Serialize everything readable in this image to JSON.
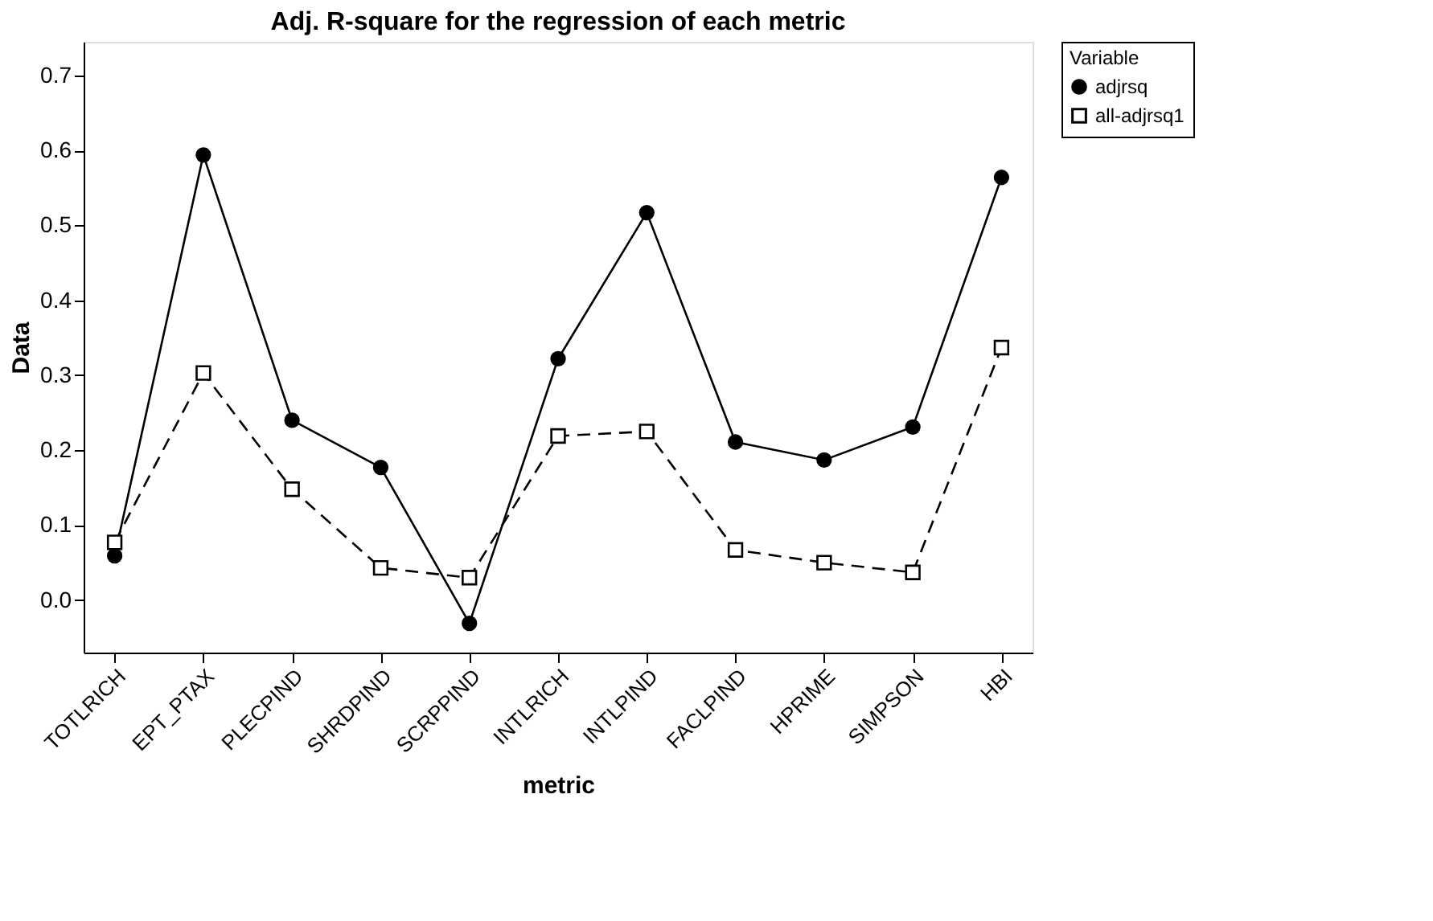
{
  "chart_data": {
    "type": "line",
    "title": "Adj. R-square for the regression of each metric",
    "xlabel": "metric",
    "ylabel": "Data",
    "legend_title": "Variable",
    "categories": [
      "TOTLRICH",
      "EPT_PTAX",
      "PLECPIND",
      "SHRDPIND",
      "SCRPPIND",
      "INTLRICH",
      "INTLPIND",
      "FACLPIND",
      "HPRIME",
      "SIMPSON",
      "HBI"
    ],
    "series": [
      {
        "name": "adjrsq",
        "color": "#000000",
        "marker": "circle",
        "line_style": "solid",
        "values": [
          0.059,
          0.594,
          0.24,
          0.177,
          -0.031,
          0.322,
          0.517,
          0.211,
          0.187,
          0.231,
          0.564
        ]
      },
      {
        "name": "all-adjrsq1",
        "color": "#000000",
        "marker": "square",
        "line_style": "dashed",
        "values": [
          0.077,
          0.303,
          0.148,
          0.043,
          0.03,
          0.219,
          0.225,
          0.067,
          0.05,
          0.037,
          0.337
        ]
      }
    ],
    "ylim": [
      -0.07,
      0.745
    ],
    "yticks": [
      {
        "value": 0,
        "label": "0.0"
      },
      0.1,
      0.2,
      0.3,
      0.4,
      0.5,
      0.6,
      0.7
    ],
    "grid": false,
    "legend": "top right"
  }
}
